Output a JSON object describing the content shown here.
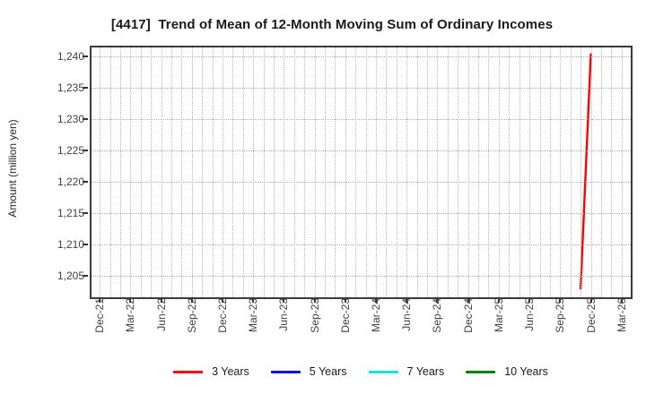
{
  "chart_data": {
    "type": "line",
    "title": "[4417]  Trend of Mean of 12-Month Moving Sum of Ordinary Incomes",
    "ylabel": "Amount (million yen)",
    "x_tick_labels": [
      "Dec-21",
      "Mar-22",
      "Jun-22",
      "Sep-22",
      "Dec-22",
      "Mar-23",
      "Jun-23",
      "Sep-23",
      "Dec-23",
      "Mar-24",
      "Jun-24",
      "Sep-24",
      "Dec-24",
      "Mar-25",
      "Jun-25",
      "Sep-25",
      "Dec-25",
      "Mar-26"
    ],
    "x_tick_month_step": 3,
    "xlim_months": [
      -0.8,
      51.9
    ],
    "y_ticks": [
      {
        "value": 1205,
        "label": "1,205"
      },
      {
        "value": 1210,
        "label": "1,210"
      },
      {
        "value": 1215,
        "label": "1,215"
      },
      {
        "value": 1220,
        "label": "1,220"
      },
      {
        "value": 1225,
        "label": "1,225"
      },
      {
        "value": 1230,
        "label": "1,230"
      },
      {
        "value": 1235,
        "label": "1,235"
      },
      {
        "value": 1240,
        "label": "1,240"
      }
    ],
    "ylim": [
      1201.6,
      1241.5
    ],
    "grid": {
      "style": "dotted",
      "x_interval": "monthly",
      "y_interval": 5,
      "color": "#b0b0b0"
    },
    "legend_position": "bottom-center",
    "series": [
      {
        "name": "3 Years",
        "color": "#ff0000",
        "points": [
          {
            "x_label": "Nov-25",
            "month_index": 47,
            "value": 1203.0
          },
          {
            "x_label": "Dec-25",
            "month_index": 48,
            "value": 1240.4
          }
        ]
      },
      {
        "name": "5 Years",
        "color": "#0000ff",
        "points": []
      },
      {
        "name": "7 Years",
        "color": "#00e5e5",
        "points": []
      },
      {
        "name": "10 Years",
        "color": "#008000",
        "points": []
      }
    ]
  }
}
